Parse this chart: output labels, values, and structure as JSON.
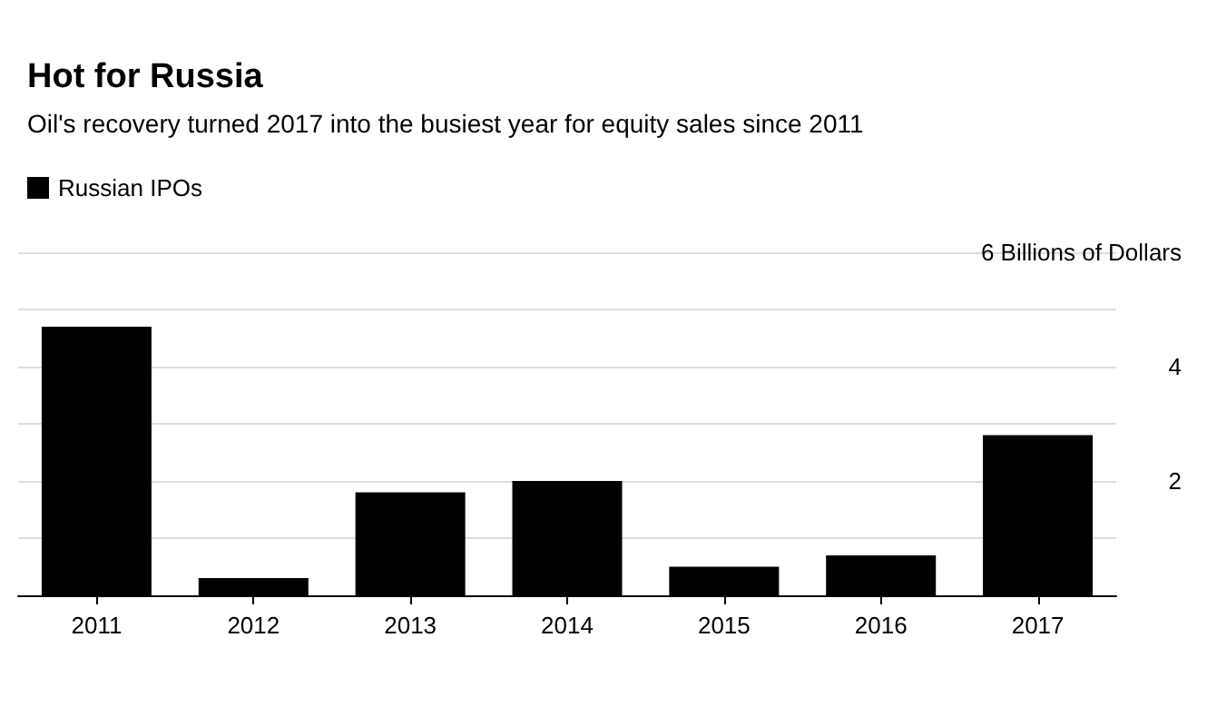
{
  "chart_data": {
    "type": "bar",
    "title": "Hot for Russia",
    "subtitle": "Oil's recovery turned 2017 into the busiest year for equity sales since 2011",
    "categories": [
      "2011",
      "2012",
      "2013",
      "2014",
      "2015",
      "2016",
      "2017"
    ],
    "series": [
      {
        "name": "Russian IPOs",
        "color": "#000000",
        "values": [
          4.7,
          0.3,
          1.8,
          2.0,
          0.5,
          0.7,
          2.8
        ]
      }
    ],
    "ylim": [
      0,
      6
    ],
    "yticks": [
      {
        "value": 0,
        "label": null
      },
      {
        "value": 1,
        "label": null
      },
      2,
      {
        "value": 3,
        "label": null
      },
      4,
      {
        "value": 5,
        "label": null
      },
      {
        "value": 6,
        "label": "6 Billions of Dollars"
      }
    ],
    "grid": "y",
    "legend": "top left"
  }
}
